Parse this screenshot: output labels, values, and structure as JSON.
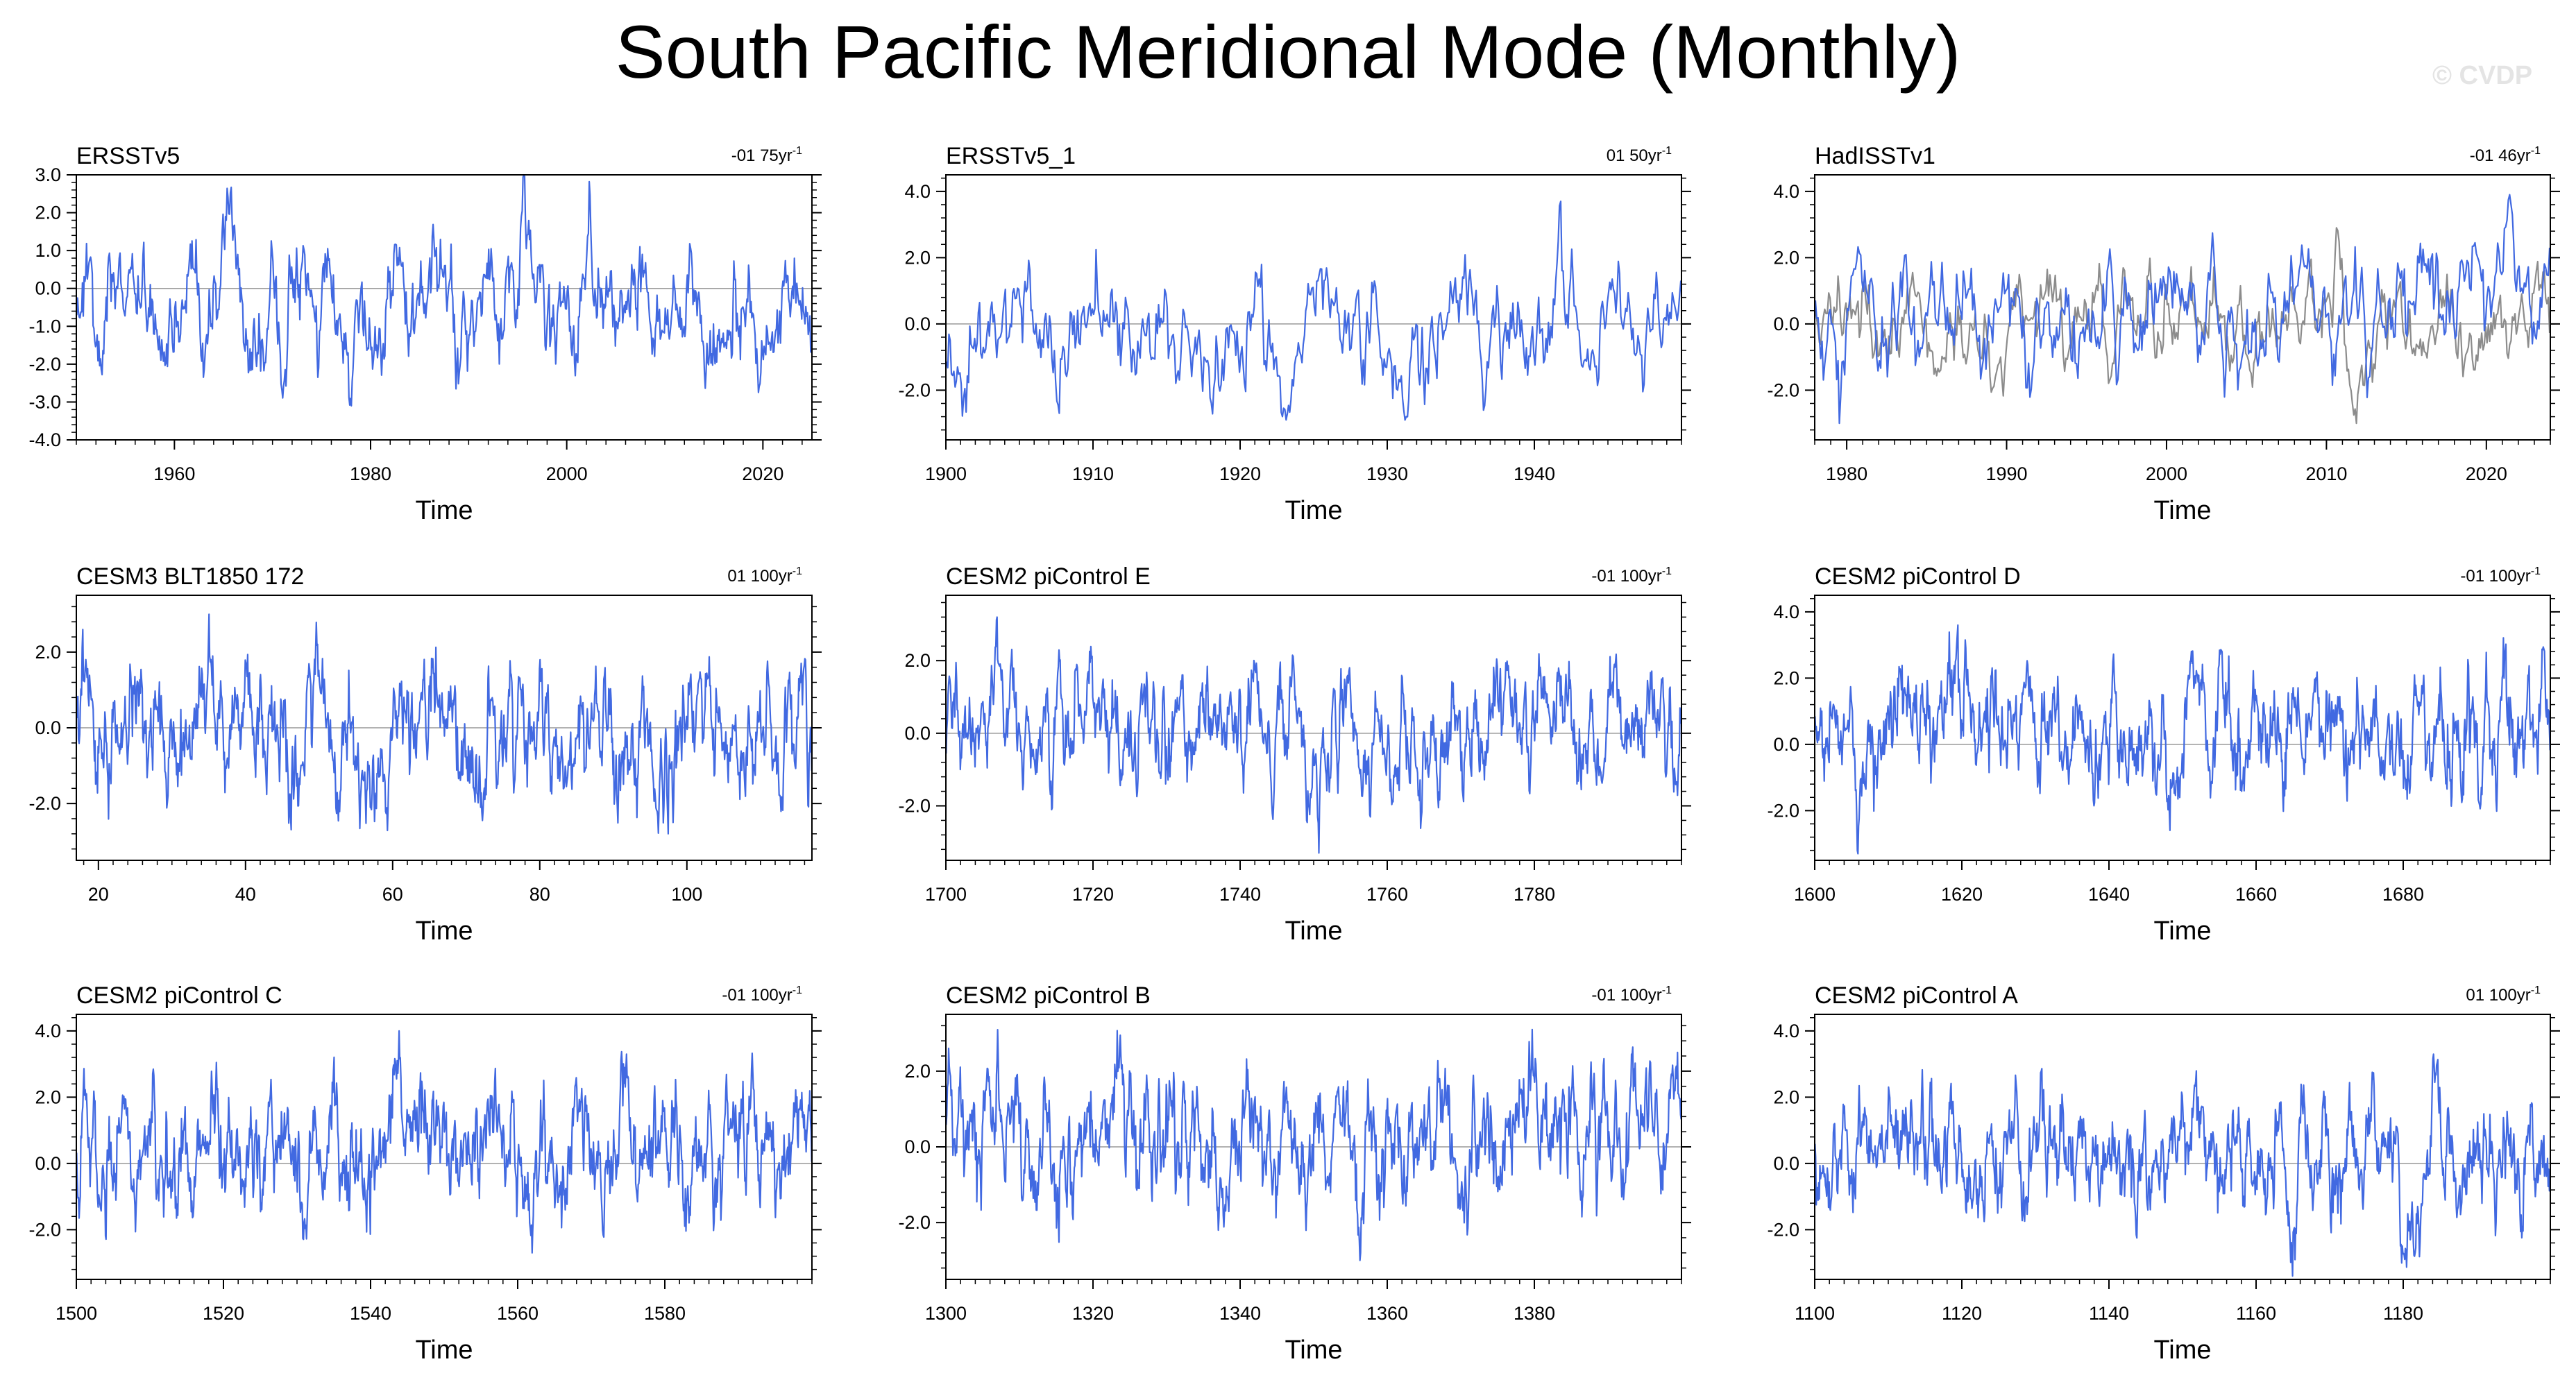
{
  "title": "South Pacific Meridional Mode (Monthly)",
  "watermark": "© CVDP",
  "colors": {
    "series": "#4169e1",
    "observed": "#8c8c8c",
    "axis": "#000000",
    "zero_line": "#999999"
  },
  "chart_data": [
    {
      "type": "line",
      "title": "ERSSTv5",
      "trend": "-01 75yr",
      "trend_unit": "-1",
      "xlabel": "Time",
      "xlim": [
        1950,
        2025
      ],
      "xticks": [
        1960,
        1980,
        2000,
        2020
      ],
      "ylim": [
        -4,
        3
      ],
      "yticks": [
        -4,
        -3,
        -2,
        -1,
        0,
        1,
        2,
        3
      ],
      "ytick_labels": [
        "-4.0",
        "-3.0",
        "-2.0",
        "-1.0",
        "0.0",
        "1.0",
        "2.0",
        "3.0"
      ],
      "series": [
        {
          "name": "ERSSTv5",
          "approx_std": 1.0,
          "approx_min": -3.1,
          "approx_max": 3.0,
          "points": 900
        }
      ]
    },
    {
      "type": "line",
      "title": "ERSSTv5_1",
      "trend": "01 50yr",
      "trend_unit": "-1",
      "xlabel": "Time",
      "xlim": [
        1900,
        1950
      ],
      "xticks": [
        1900,
        1910,
        1920,
        1930,
        1940
      ],
      "ylim": [
        -3.5,
        4.5
      ],
      "yticks": [
        -2,
        0,
        2,
        4
      ],
      "ytick_labels": [
        "-2.0",
        "0.0",
        "2.0",
        "4.0"
      ],
      "series": [
        {
          "name": "ERSSTv5_1",
          "approx_std": 1.0,
          "approx_min": -2.9,
          "approx_max": 3.7,
          "points": 600
        }
      ]
    },
    {
      "type": "line",
      "title": "HadISSTv1",
      "trend": "-01 46yr",
      "trend_unit": "-1",
      "xlabel": "Time",
      "xlim": [
        1978,
        2024
      ],
      "xticks": [
        1980,
        1990,
        2000,
        2010,
        2020
      ],
      "ylim": [
        -3.5,
        4.5
      ],
      "yticks": [
        -2,
        0,
        2,
        4
      ],
      "ytick_labels": [
        "-2.0",
        "0.0",
        "2.0",
        "4.0"
      ],
      "series": [
        {
          "name": "HadISSTv1",
          "approx_std": 1.0,
          "approx_min": -3.0,
          "approx_max": 3.9,
          "points": 552
        },
        {
          "name": "observed",
          "approx_std": 1.0,
          "approx_min": -3.0,
          "approx_max": 2.9,
          "points": 552
        }
      ]
    },
    {
      "type": "line",
      "title": "CESM3 BLT1850 172",
      "trend": "01 100yr",
      "trend_unit": "-1",
      "xlabel": "Time",
      "xlim": [
        17,
        117
      ],
      "xticks": [
        20,
        40,
        60,
        80,
        100
      ],
      "ylim": [
        -3.5,
        3.5
      ],
      "yticks": [
        -2,
        0,
        2
      ],
      "ytick_labels": [
        "-2.0",
        "0.0",
        "2.0"
      ],
      "series": [
        {
          "name": "CESM3 BLT1850 172",
          "approx_std": 1.0,
          "approx_min": -2.8,
          "approx_max": 3.0,
          "points": 1200
        }
      ]
    },
    {
      "type": "line",
      "title": "CESM2 piControl E",
      "trend": "-01 100yr",
      "trend_unit": "-1",
      "xlabel": "Time",
      "xlim": [
        1700,
        1800
      ],
      "xticks": [
        1700,
        1720,
        1740,
        1760,
        1780
      ],
      "ylim": [
        -3.5,
        3.8
      ],
      "yticks": [
        -2,
        0,
        2
      ],
      "ytick_labels": [
        "-2.0",
        "0.0",
        "2.0"
      ],
      "series": [
        {
          "name": "CESM2 piControl E",
          "approx_std": 1.0,
          "approx_min": -3.3,
          "approx_max": 3.2,
          "points": 1200
        }
      ]
    },
    {
      "type": "line",
      "title": "CESM2 piControl D",
      "trend": "-01 100yr",
      "trend_unit": "-1",
      "xlabel": "Time",
      "xlim": [
        1600,
        1700
      ],
      "xticks": [
        1600,
        1620,
        1640,
        1660,
        1680
      ],
      "ylim": [
        -3.5,
        4.5
      ],
      "yticks": [
        -2,
        0,
        2,
        4
      ],
      "ytick_labels": [
        "-2.0",
        "0.0",
        "2.0",
        "4.0"
      ],
      "series": [
        {
          "name": "CESM2 piControl D",
          "approx_std": 1.0,
          "approx_min": -3.3,
          "approx_max": 3.6,
          "points": 1200
        }
      ]
    },
    {
      "type": "line",
      "title": "CESM2 piControl C",
      "trend": "-01 100yr",
      "trend_unit": "-1",
      "xlabel": "Time",
      "xlim": [
        1500,
        1600
      ],
      "xticks": [
        1500,
        1520,
        1540,
        1560,
        1580
      ],
      "ylim": [
        -3.5,
        4.5
      ],
      "yticks": [
        -2,
        0,
        2,
        4
      ],
      "ytick_labels": [
        "-2.0",
        "0.0",
        "2.0",
        "4.0"
      ],
      "series": [
        {
          "name": "CESM2 piControl C",
          "approx_std": 1.0,
          "approx_min": -2.7,
          "approx_max": 4.0,
          "points": 1200
        }
      ]
    },
    {
      "type": "line",
      "title": "CESM2 piControl B",
      "trend": "-01 100yr",
      "trend_unit": "-1",
      "xlabel": "Time",
      "xlim": [
        1300,
        1400
      ],
      "xticks": [
        1300,
        1320,
        1340,
        1360,
        1380
      ],
      "ylim": [
        -3.5,
        3.5
      ],
      "yticks": [
        -2,
        0,
        2
      ],
      "ytick_labels": [
        "-2.0",
        "0.0",
        "2.0"
      ],
      "series": [
        {
          "name": "CESM2 piControl B",
          "approx_std": 1.0,
          "approx_min": -3.0,
          "approx_max": 3.1,
          "points": 1200
        }
      ]
    },
    {
      "type": "line",
      "title": "CESM2 piControl A",
      "trend": "01 100yr",
      "trend_unit": "-1",
      "xlabel": "Time",
      "xlim": [
        1100,
        1200
      ],
      "xticks": [
        1100,
        1120,
        1140,
        1160,
        1180
      ],
      "ylim": [
        -3.5,
        4.5
      ],
      "yticks": [
        -2,
        0,
        2,
        4
      ],
      "ytick_labels": [
        "-2.0",
        "0.0",
        "2.0",
        "4.0"
      ],
      "series": [
        {
          "name": "CESM2 piControl A",
          "approx_std": 1.0,
          "approx_min": -3.4,
          "approx_max": 3.3,
          "points": 1200
        }
      ]
    }
  ]
}
